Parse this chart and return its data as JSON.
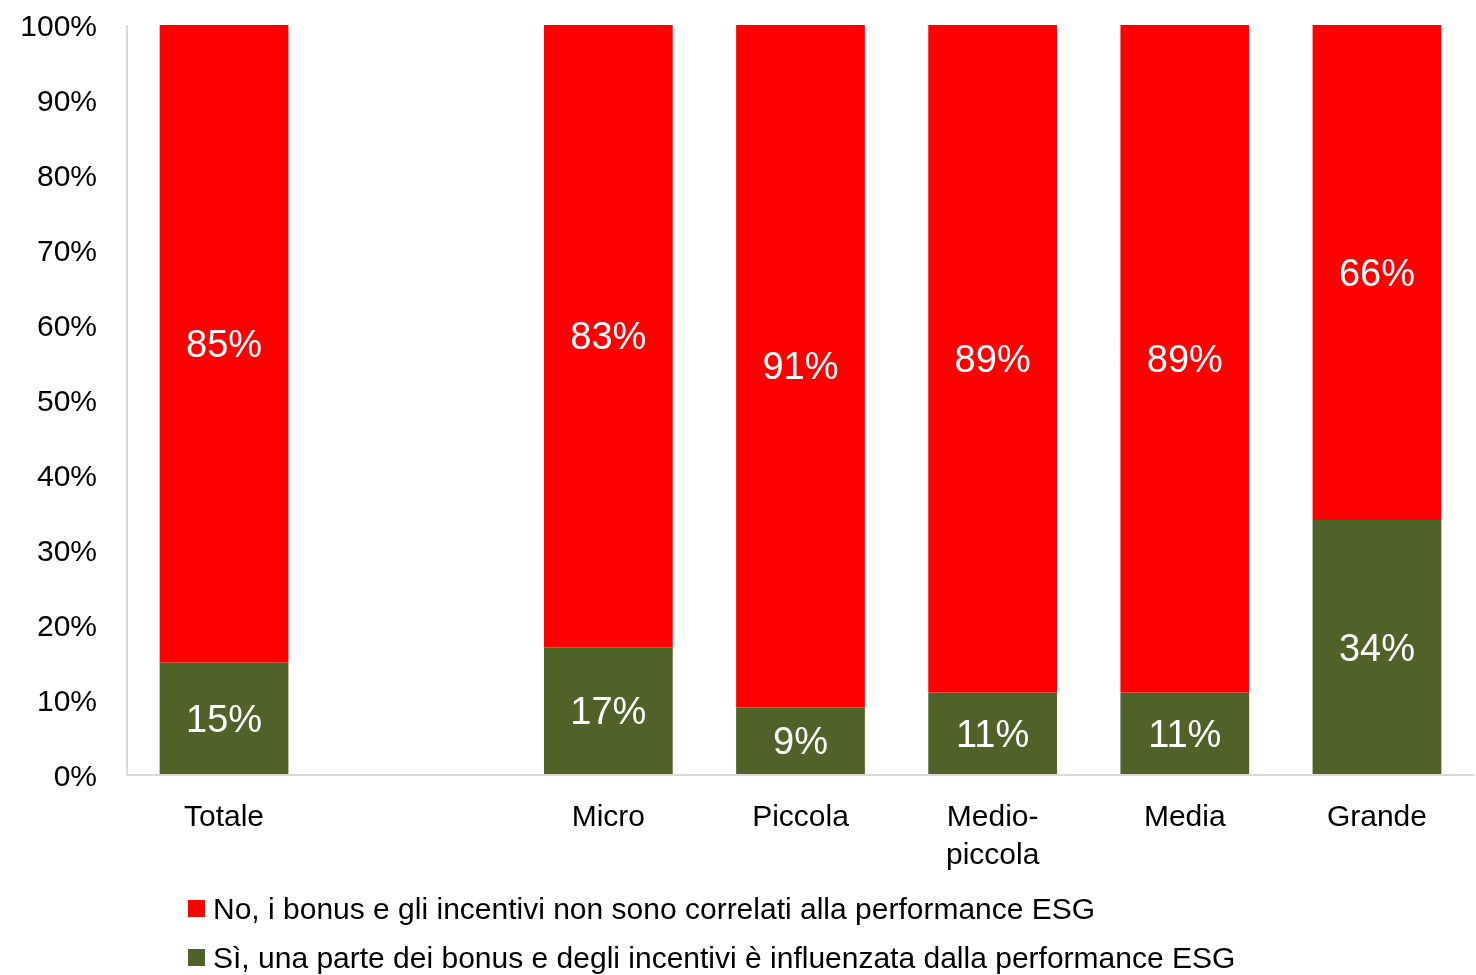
{
  "chart_data": {
    "type": "bar",
    "stacked": true,
    "categories": [
      "Totale",
      null,
      "Micro",
      "Piccola",
      "Medio-piccola",
      "Media",
      "Grande"
    ],
    "series": [
      {
        "name": "Sì, una parte dei bonus e degli incentivi è influenzata dalla performance ESG",
        "color": "#4f6228",
        "values": [
          15,
          null,
          17,
          9,
          11,
          11,
          34
        ],
        "value_labels": [
          "15%",
          null,
          "17%",
          "9%",
          "11%",
          "11%",
          "34%"
        ]
      },
      {
        "name": "No, i bonus e gli incentivi non sono correlati alla performance ESG",
        "color": "#ff0000",
        "values": [
          85,
          null,
          83,
          91,
          89,
          89,
          66
        ],
        "value_labels": [
          "85%",
          null,
          "83%",
          "91%",
          "89%",
          "89%",
          "66%"
        ]
      }
    ],
    "ylim": [
      0,
      100
    ],
    "yticks": [
      {
        "value": 0,
        "label": "0%"
      },
      {
        "value": 10,
        "label": "10%"
      },
      {
        "value": 20,
        "label": "20%"
      },
      {
        "value": 30,
        "label": "30%"
      },
      {
        "value": 40,
        "label": "40%"
      },
      {
        "value": 50,
        "label": "50%"
      },
      {
        "value": 60,
        "label": "60%"
      },
      {
        "value": 70,
        "label": "70%"
      },
      {
        "value": 80,
        "label": "80%"
      },
      {
        "value": 90,
        "label": "90%"
      },
      {
        "value": 100,
        "label": "100%"
      }
    ],
    "legend": "bottom",
    "grid": false
  }
}
